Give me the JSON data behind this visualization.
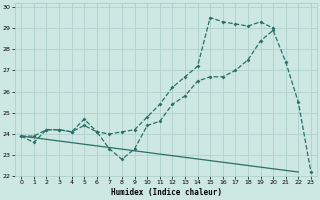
{
  "title": "",
  "xlabel": "Humidex (Indice chaleur)",
  "xlim": [
    -0.5,
    23.5
  ],
  "ylim": [
    22,
    30.2
  ],
  "yticks": [
    22,
    23,
    24,
    25,
    26,
    27,
    28,
    29,
    30
  ],
  "xticks": [
    0,
    1,
    2,
    3,
    4,
    5,
    6,
    7,
    8,
    9,
    10,
    11,
    12,
    13,
    14,
    15,
    16,
    17,
    18,
    19,
    20,
    21,
    22,
    23
  ],
  "background_color": "#cde8e2",
  "grid_color": "#aacec8",
  "line_color": "#2a7068",
  "line1_y": [
    23.9,
    23.6,
    24.2,
    24.2,
    24.1,
    24.4,
    24.1,
    23.3,
    22.8,
    23.3,
    24.4,
    24.6,
    25.4,
    25.8,
    26.5,
    26.7,
    26.7,
    27.0,
    27.5,
    28.4,
    28.9,
    27.4,
    25.5,
    22.2
  ],
  "line2_y": [
    23.9,
    23.9,
    24.2,
    24.2,
    24.1,
    24.7,
    24.1,
    24.0,
    24.1,
    24.2,
    24.8,
    25.4,
    26.2,
    26.7,
    27.2,
    29.5,
    29.3,
    29.2,
    29.1,
    29.3,
    29.0,
    null,
    null,
    null
  ],
  "line3_y": [
    23.9,
    null,
    null,
    null,
    null,
    null,
    null,
    null,
    null,
    null,
    null,
    null,
    null,
    null,
    null,
    null,
    null,
    null,
    null,
    null,
    null,
    null,
    22.2,
    null
  ]
}
